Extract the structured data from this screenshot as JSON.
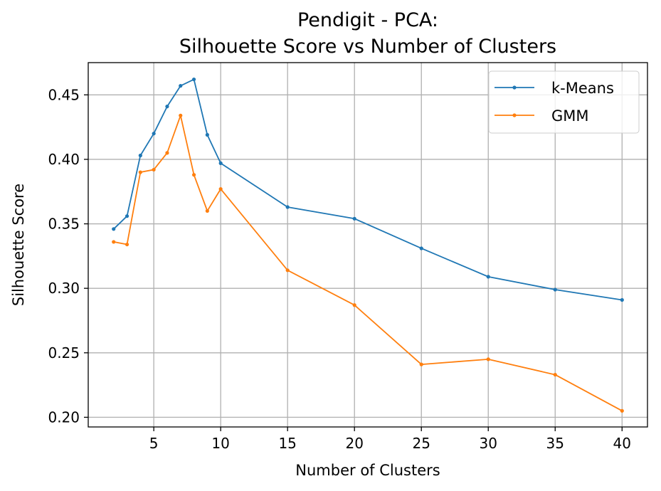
{
  "chart_data": {
    "type": "line",
    "title": [
      "Pendigit - PCA:",
      "Silhouette Score vs Number of Clusters"
    ],
    "xlabel": "Number of Clusters",
    "ylabel": "Silhouette Score",
    "xlim": [
      0.1,
      41.9
    ],
    "ylim": [
      0.1925,
      0.475
    ],
    "xticks": [
      5,
      10,
      15,
      20,
      25,
      30,
      35,
      40
    ],
    "xtick_labels": [
      "5",
      "10",
      "15",
      "20",
      "25",
      "30",
      "35",
      "40"
    ],
    "yticks": [
      0.2,
      0.25,
      0.3,
      0.35,
      0.4,
      0.45
    ],
    "ytick_labels": [
      "0.20",
      "0.25",
      "0.30",
      "0.35",
      "0.40",
      "0.45"
    ],
    "grid": true,
    "legend_position": "top-right",
    "x": [
      2,
      3,
      4,
      5,
      6,
      7,
      8,
      9,
      10,
      15,
      20,
      25,
      30,
      35,
      40
    ],
    "series": [
      {
        "name": "k-Means",
        "color": "#1f77b4",
        "values": [
          0.346,
          0.356,
          0.403,
          0.42,
          0.441,
          0.457,
          0.462,
          0.419,
          0.397,
          0.363,
          0.354,
          0.331,
          0.309,
          0.299,
          0.291
        ]
      },
      {
        "name": "GMM",
        "color": "#ff7f0e",
        "values": [
          0.336,
          0.334,
          0.39,
          0.392,
          0.405,
          0.434,
          0.388,
          0.36,
          0.377,
          0.314,
          0.287,
          0.241,
          0.245,
          0.233,
          0.205
        ]
      }
    ]
  }
}
